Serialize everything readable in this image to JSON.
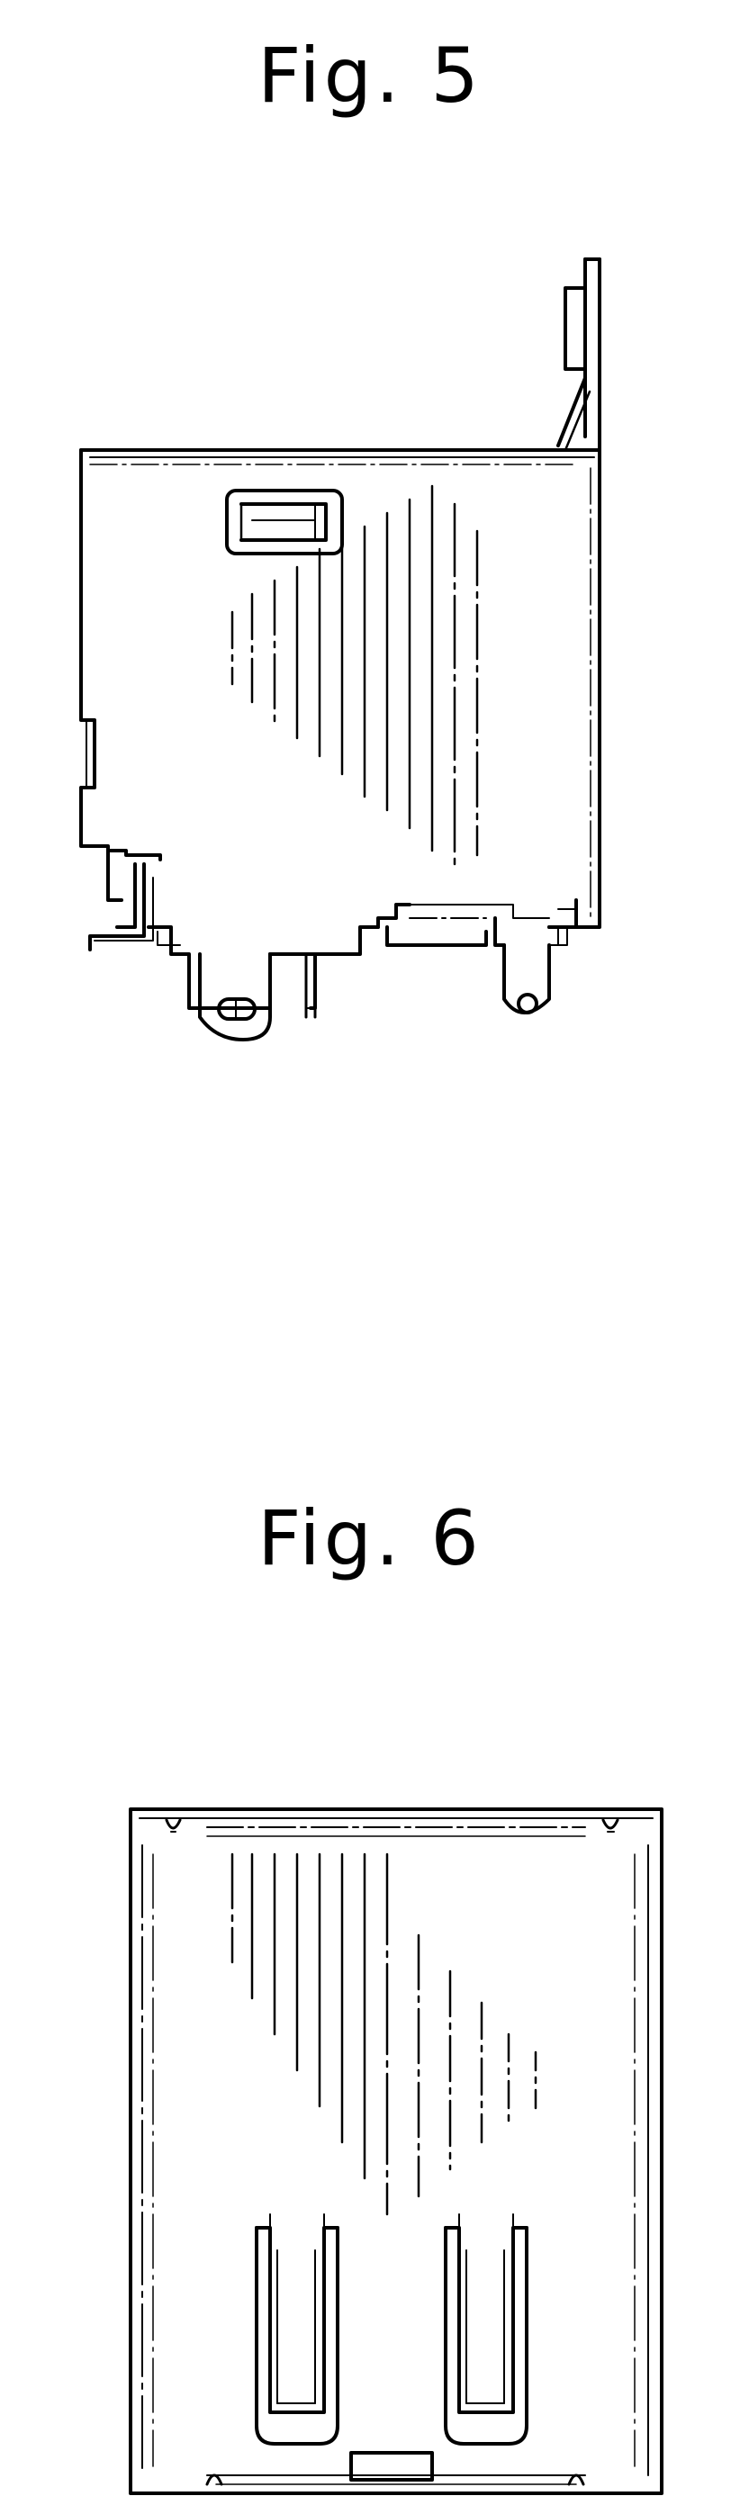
{
  "figures": [
    {
      "title": "Fig. 5"
    },
    {
      "title": "Fig. 6"
    }
  ],
  "colors": {
    "ink": "#000000",
    "paper": "#ffffff"
  }
}
